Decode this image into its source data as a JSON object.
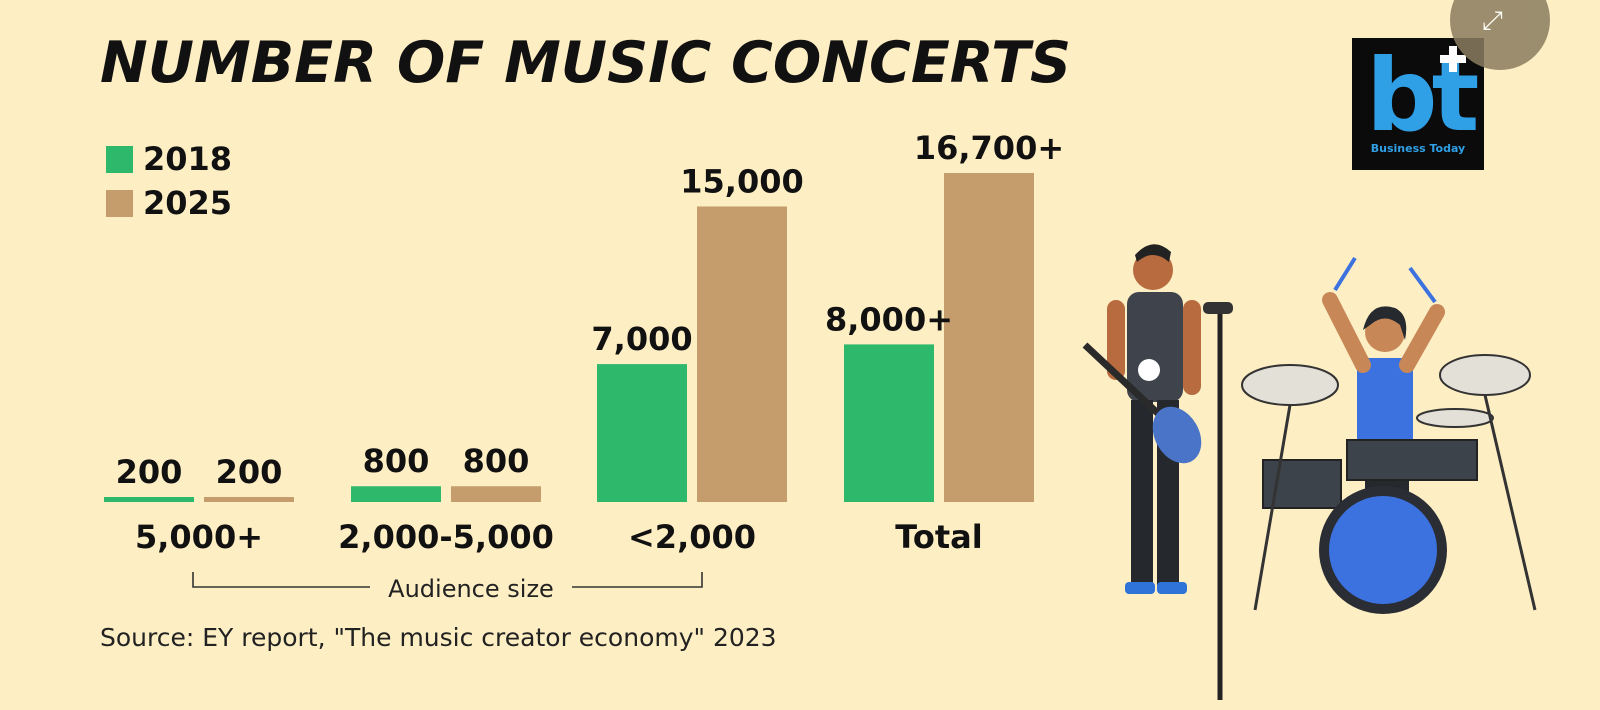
{
  "header": {
    "title": "NUMBER OF MUSIC CONCERTS"
  },
  "legend": {
    "items": [
      {
        "label": "2018",
        "color": "#2eb86b"
      },
      {
        "label": "2025",
        "color": "#c59c6c"
      }
    ]
  },
  "axis": {
    "group_label": "Audience size"
  },
  "footer": {
    "source": "Source: EY report, \"The music creator economy\" 2023"
  },
  "logo": {
    "brand_text": "bt",
    "caption": "Business Today"
  },
  "controls": {
    "expand_icon": "expand-icon"
  },
  "chart_data": {
    "type": "bar",
    "title": "NUMBER OF MUSIC CONCERTS",
    "categories": [
      "5,000+",
      "2,000-5,000",
      "<2,000",
      "Total"
    ],
    "xlabel": "Audience size",
    "ylabel": "",
    "ylim": [
      0,
      16700
    ],
    "grid": false,
    "legend_position": "top-left",
    "series": [
      {
        "name": "2018",
        "values": [
          200,
          800,
          7000,
          8000
        ],
        "labels": [
          "200",
          "800",
          "7,000",
          "8,000+"
        ],
        "color": "#2eb86b"
      },
      {
        "name": "2025",
        "values": [
          200,
          800,
          15000,
          16700
        ],
        "labels": [
          "200",
          "800",
          "15,000",
          "16,700+"
        ],
        "color": "#c59c6c"
      }
    ]
  }
}
